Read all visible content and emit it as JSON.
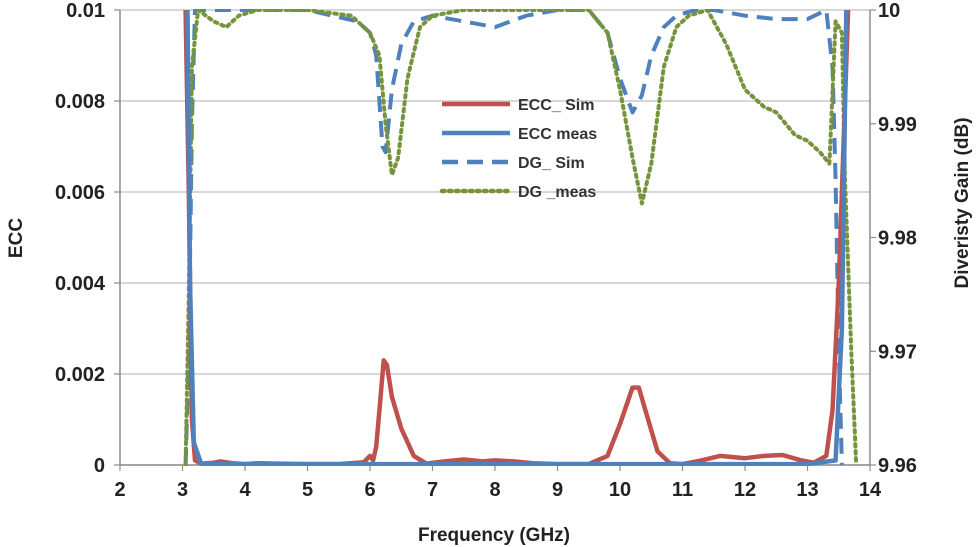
{
  "chart_data": {
    "type": "line",
    "xlabel": "Frequency (GHz)",
    "ylabel": "ECC",
    "y2label": "Diveristy Gain (dB)",
    "xlim": [
      2,
      14
    ],
    "ylim": [
      0,
      0.01
    ],
    "y2lim": [
      9.96,
      10
    ],
    "grid": true,
    "legend_position": "center",
    "xticks": [
      "2",
      "3",
      "4",
      "5",
      "6",
      "7",
      "8",
      "9",
      "10",
      "11",
      "12",
      "13",
      "14"
    ],
    "yticks": [
      "0",
      "0.002",
      "0.004",
      "0.006",
      "0.008",
      "0.01"
    ],
    "y2ticks": [
      "9.96",
      "9.97",
      "9.98",
      "9.99",
      "10"
    ],
    "series": [
      {
        "name": "ECC_ Sim",
        "axis": "left",
        "color": "#c0504d",
        "style": "solid",
        "points": [
          [
            3.05,
            0.01
          ],
          [
            3.1,
            0.006
          ],
          [
            3.15,
            0.001
          ],
          [
            3.2,
            0.0001
          ],
          [
            3.3,
            3e-05
          ],
          [
            3.5,
            5e-05
          ],
          [
            3.6,
            8e-05
          ],
          [
            3.8,
            4e-05
          ],
          [
            4.0,
            2e-05
          ],
          [
            4.2,
            4e-05
          ],
          [
            4.5,
            3e-05
          ],
          [
            5.0,
            2e-05
          ],
          [
            5.5,
            2e-05
          ],
          [
            5.9,
            6e-05
          ],
          [
            6.0,
            0.0002
          ],
          [
            6.05,
            0.0001
          ],
          [
            6.1,
            0.0004
          ],
          [
            6.15,
            0.0012
          ],
          [
            6.22,
            0.0023
          ],
          [
            6.27,
            0.0022
          ],
          [
            6.35,
            0.0015
          ],
          [
            6.5,
            0.0008
          ],
          [
            6.7,
            0.0002
          ],
          [
            6.9,
            3e-05
          ],
          [
            7.2,
            8e-05
          ],
          [
            7.5,
            0.00012
          ],
          [
            7.8,
            8e-05
          ],
          [
            8.0,
            0.0001
          ],
          [
            8.3,
            8e-05
          ],
          [
            8.6,
            4e-05
          ],
          [
            9.0,
            2e-05
          ],
          [
            9.5,
            2e-05
          ],
          [
            9.8,
            0.0002
          ],
          [
            10.0,
            0.0009
          ],
          [
            10.2,
            0.0017
          ],
          [
            10.3,
            0.0017
          ],
          [
            10.45,
            0.001
          ],
          [
            10.6,
            0.0003
          ],
          [
            10.8,
            4e-05
          ],
          [
            11.0,
            2e-05
          ],
          [
            11.3,
            0.0001
          ],
          [
            11.6,
            0.0002
          ],
          [
            12.0,
            0.00015
          ],
          [
            12.3,
            0.0002
          ],
          [
            12.6,
            0.00022
          ],
          [
            12.9,
            0.0001
          ],
          [
            13.1,
            5e-05
          ],
          [
            13.3,
            0.0002
          ],
          [
            13.4,
            0.0012
          ],
          [
            13.5,
            0.004
          ],
          [
            13.6,
            0.008
          ],
          [
            13.65,
            0.01
          ]
        ]
      },
      {
        "name": "ECC meas",
        "axis": "left",
        "color": "#4f81bd",
        "style": "solid",
        "points": [
          [
            3.08,
            0.01
          ],
          [
            3.12,
            0.004
          ],
          [
            3.18,
            0.0005
          ],
          [
            3.3,
            2e-05
          ],
          [
            5.0,
            2e-05
          ],
          [
            9.0,
            2e-05
          ],
          [
            13.0,
            2e-05
          ],
          [
            13.45,
            0.0001
          ],
          [
            13.55,
            0.003
          ],
          [
            13.62,
            0.01
          ]
        ]
      },
      {
        "name": "DG_ Sim",
        "axis": "right",
        "color": "#4f81bd",
        "style": "dashed",
        "points": [
          [
            3.05,
            9.96
          ],
          [
            3.1,
            9.97
          ],
          [
            3.15,
            9.99
          ],
          [
            3.2,
            10
          ],
          [
            3.5,
            10
          ],
          [
            4.0,
            10
          ],
          [
            5.0,
            10
          ],
          [
            5.8,
            9.999
          ],
          [
            6.0,
            9.998
          ],
          [
            6.1,
            9.996
          ],
          [
            6.2,
            9.988
          ],
          [
            6.25,
            9.9875
          ],
          [
            6.35,
            9.993
          ],
          [
            6.5,
            9.997
          ],
          [
            6.7,
            9.999
          ],
          [
            7.0,
            9.9995
          ],
          [
            7.5,
            9.999
          ],
          [
            8.0,
            9.9985
          ],
          [
            8.5,
            9.9995
          ],
          [
            9.0,
            10
          ],
          [
            9.5,
            10
          ],
          [
            9.8,
            9.998
          ],
          [
            10.0,
            9.994
          ],
          [
            10.2,
            9.991
          ],
          [
            10.35,
            9.9925
          ],
          [
            10.5,
            9.996
          ],
          [
            10.7,
            9.9985
          ],
          [
            10.9,
            9.9995
          ],
          [
            11.2,
            10
          ],
          [
            11.5,
            10
          ],
          [
            12.0,
            9.9995
          ],
          [
            12.5,
            9.9992
          ],
          [
            13.0,
            9.9992
          ],
          [
            13.3,
            10
          ],
          [
            13.4,
            9.995
          ],
          [
            13.45,
            9.985
          ],
          [
            13.5,
            9.97
          ],
          [
            13.55,
            9.96
          ]
        ]
      },
      {
        "name": "DG _meas",
        "axis": "right",
        "color": "#77933c",
        "style": "dotted",
        "points": [
          [
            3.05,
            9.96
          ],
          [
            3.1,
            9.975
          ],
          [
            3.15,
            9.995
          ],
          [
            3.25,
            10
          ],
          [
            3.5,
            9.999
          ],
          [
            3.7,
            9.9985
          ],
          [
            3.9,
            9.9995
          ],
          [
            4.2,
            10
          ],
          [
            5.0,
            10
          ],
          [
            5.7,
            9.9995
          ],
          [
            6.0,
            9.998
          ],
          [
            6.15,
            9.996
          ],
          [
            6.25,
            9.99
          ],
          [
            6.35,
            9.9855
          ],
          [
            6.45,
            9.987
          ],
          [
            6.6,
            9.994
          ],
          [
            6.8,
            9.9985
          ],
          [
            7.0,
            9.9995
          ],
          [
            7.5,
            10
          ],
          [
            8.0,
            10
          ],
          [
            9.0,
            10
          ],
          [
            9.5,
            10
          ],
          [
            9.8,
            9.998
          ],
          [
            10.0,
            9.993
          ],
          [
            10.2,
            9.987
          ],
          [
            10.35,
            9.983
          ],
          [
            10.5,
            9.9865
          ],
          [
            10.7,
            9.995
          ],
          [
            10.9,
            9.9985
          ],
          [
            11.1,
            9.9995
          ],
          [
            11.4,
            10
          ],
          [
            11.7,
            9.997
          ],
          [
            12.0,
            9.993
          ],
          [
            12.3,
            9.9915
          ],
          [
            12.5,
            9.991
          ],
          [
            12.8,
            9.989
          ],
          [
            13.0,
            9.9885
          ],
          [
            13.2,
            9.9875
          ],
          [
            13.35,
            9.9865
          ],
          [
            13.45,
            9.999
          ],
          [
            13.55,
            9.998
          ],
          [
            13.6,
            9.985
          ],
          [
            13.7,
            9.97
          ],
          [
            13.78,
            9.96
          ]
        ]
      }
    ]
  }
}
